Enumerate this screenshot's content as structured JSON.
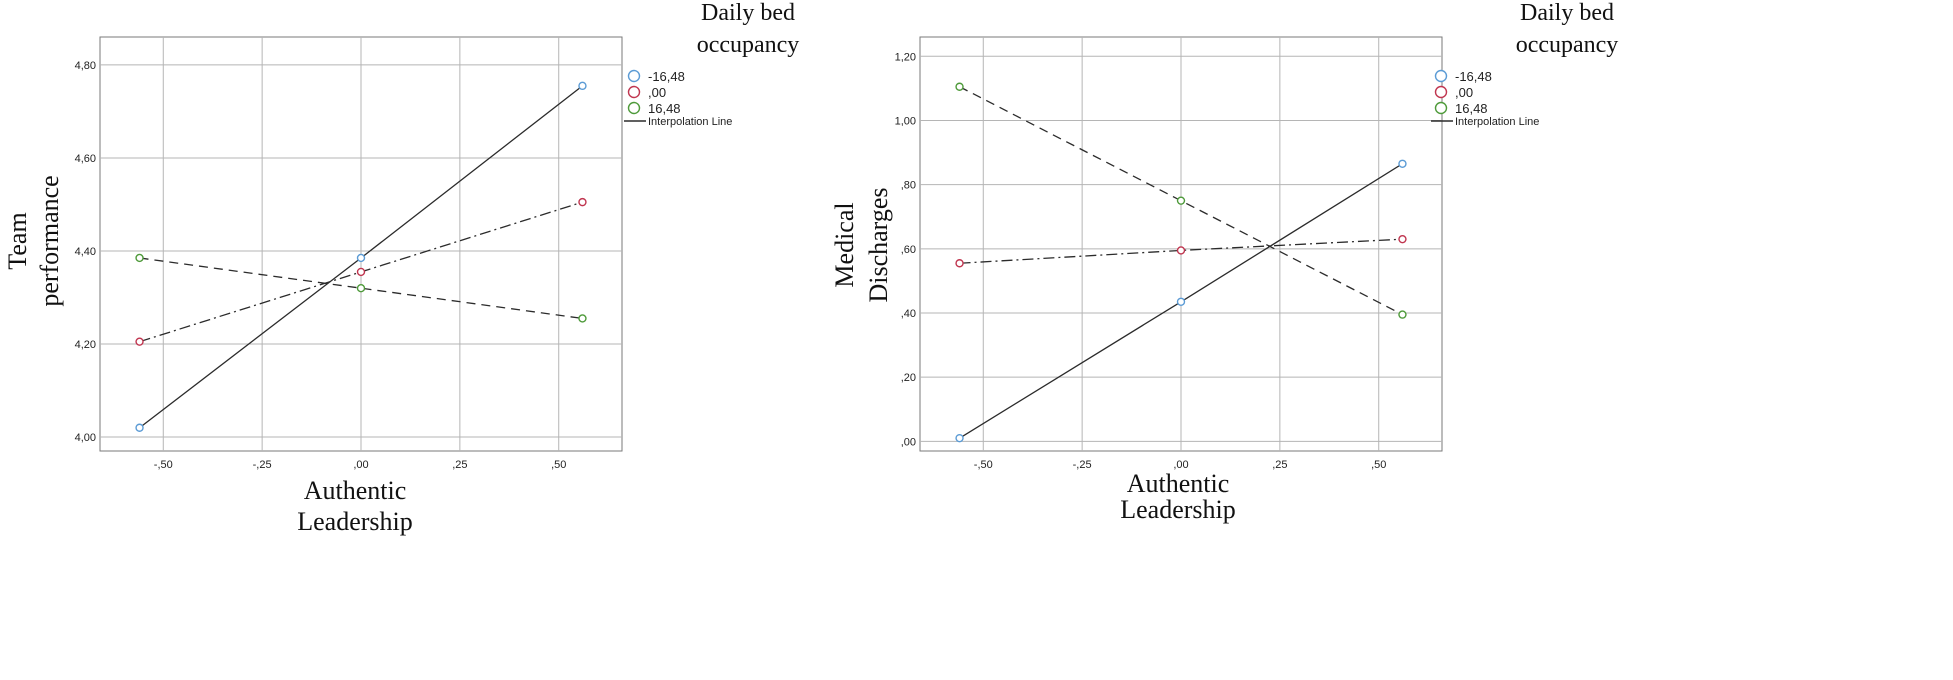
{
  "chart_data": [
    {
      "type": "line",
      "x": [
        -0.56,
        0.0,
        0.56
      ],
      "xlabel": [
        "Authentic",
        "Leadership"
      ],
      "ylabel": [
        "Team",
        "performance"
      ],
      "x_ticks": [
        -0.5,
        -0.25,
        0.0,
        0.25,
        0.5
      ],
      "x_tick_labels": [
        "-,50",
        "-,25",
        ",00",
        ",25",
        ",50"
      ],
      "y_ticks": [
        4.0,
        4.2,
        4.4,
        4.6,
        4.8
      ],
      "y_tick_labels": [
        "4,00",
        "4,20",
        "4,40",
        "4,60",
        "4,80"
      ],
      "xlim": [
        -0.66,
        0.66
      ],
      "ylim": [
        3.97,
        4.86
      ],
      "grid": true,
      "legend_title": [
        "Daily bed",
        "occupancy"
      ],
      "legend_placement": "top-right",
      "interpolation_label": "Interpolation Line",
      "series": [
        {
          "name": "-16,48",
          "values": [
            4.02,
            4.385,
            4.755
          ],
          "marker_color": "#5b9bd5",
          "line_style": "solid"
        },
        {
          "name": ",00",
          "values": [
            4.205,
            4.355,
            4.505
          ],
          "marker_color": "#c0354f",
          "line_style": "dashdot"
        },
        {
          "name": "16,48",
          "values": [
            4.385,
            4.32,
            4.255
          ],
          "marker_color": "#4e9a3a",
          "line_style": "dashed"
        }
      ]
    },
    {
      "type": "line",
      "x": [
        -0.56,
        0.0,
        0.56
      ],
      "xlabel": [
        "Authentic",
        "Leadership"
      ],
      "ylabel": [
        "Medical",
        "Discharges"
      ],
      "x_ticks": [
        -0.5,
        -0.25,
        0.0,
        0.25,
        0.5
      ],
      "x_tick_labels": [
        "-,50",
        "-,25",
        ",00",
        ",25",
        ",50"
      ],
      "y_ticks": [
        0.0,
        0.2,
        0.4,
        0.6,
        0.8,
        1.0,
        1.2
      ],
      "y_tick_labels": [
        ",00",
        ",20",
        ",40",
        ",60",
        ",80",
        "1,00",
        "1,20"
      ],
      "xlim": [
        -0.66,
        0.66
      ],
      "ylim": [
        -0.03,
        1.26
      ],
      "grid": true,
      "legend_title": [
        "Daily bed",
        "occupancy"
      ],
      "legend_placement": "top-right",
      "interpolation_label": "Interpolation Line",
      "series": [
        {
          "name": "-16,48",
          "values": [
            0.01,
            0.435,
            0.865
          ],
          "marker_color": "#5b9bd5",
          "line_style": "solid"
        },
        {
          "name": ",00",
          "values": [
            0.555,
            0.595,
            0.63
          ],
          "marker_color": "#c0354f",
          "line_style": "dashdot"
        },
        {
          "name": "16,48",
          "values": [
            1.105,
            0.75,
            0.395
          ],
          "marker_color": "#4e9a3a",
          "line_style": "dashed"
        }
      ]
    }
  ]
}
